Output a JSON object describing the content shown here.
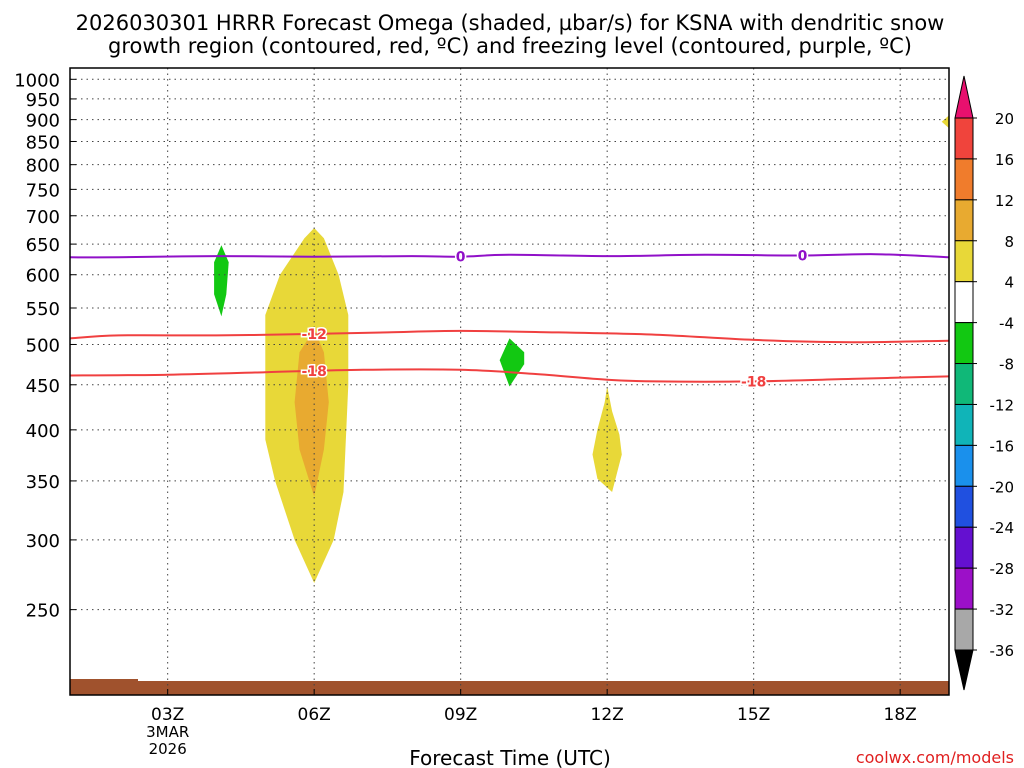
{
  "chart_data": {
    "type": "contour",
    "title_line1": "2026030301 HRRR Forecast Omega (shaded, µbar/s) for KSNA with dendritic snow",
    "title_line2": "growth region (contoured, red, ºC) and freezing level (contoured, purple, ºC)",
    "xlabel": "Forecast Time (UTC)",
    "credit": "coolwx.com/models",
    "x_range_hours": [
      1,
      19
    ],
    "y_range_hpa": [
      1030,
      200
    ],
    "y_scale": "log-pressure",
    "grid": "dotted",
    "x_ticks": [
      {
        "hour": 3,
        "label": "03Z",
        "sub1": "3MAR",
        "sub2": "2026"
      },
      {
        "hour": 6,
        "label": "06Z"
      },
      {
        "hour": 9,
        "label": "09Z"
      },
      {
        "hour": 12,
        "label": "12Z"
      },
      {
        "hour": 15,
        "label": "15Z"
      },
      {
        "hour": 18,
        "label": "18Z"
      }
    ],
    "y_ticks": [
      250,
      300,
      350,
      400,
      450,
      500,
      550,
      600,
      650,
      700,
      750,
      800,
      850,
      900,
      950,
      1000
    ],
    "colorbar": {
      "levels": [
        "20",
        "16",
        "12",
        "8",
        "4",
        "-4",
        "-8",
        "-12",
        "-16",
        "-20",
        "-24",
        "-28",
        "-32",
        "-36"
      ],
      "colors": [
        "#e8106e",
        "#f0443c",
        "#f07c2c",
        "#e8aa30",
        "#e8d838",
        "#ffffff",
        "#12c812",
        "#10b878",
        "#10b4b8",
        "#1a90ec",
        "#2050e0",
        "#6410d0",
        "#9c10c8",
        "#a8a8a8",
        "#000000"
      ]
    },
    "contours_celsius": {
      "minus18": {
        "label": "-18",
        "color": "#f04040",
        "points": [
          [
            1,
            461
          ],
          [
            3,
            462
          ],
          [
            5,
            465
          ],
          [
            7,
            468
          ],
          [
            9,
            468
          ],
          [
            10.5,
            463
          ],
          [
            12,
            456
          ],
          [
            13,
            454
          ],
          [
            15,
            454
          ],
          [
            17,
            457
          ],
          [
            19,
            460
          ]
        ]
      },
      "minus12": {
        "label": "-12",
        "color": "#f04040",
        "points": [
          [
            1,
            508
          ],
          [
            2,
            512
          ],
          [
            4,
            512
          ],
          [
            6,
            514
          ],
          [
            7.5,
            516
          ],
          [
            9,
            518
          ],
          [
            11,
            516
          ],
          [
            13,
            513
          ],
          [
            15,
            506
          ],
          [
            17,
            503
          ],
          [
            19,
            505
          ]
        ]
      },
      "zero": {
        "label": "0",
        "color": "#9010c8",
        "points": [
          [
            1,
            628
          ],
          [
            2,
            628
          ],
          [
            4,
            630
          ],
          [
            6,
            629
          ],
          [
            8,
            630
          ],
          [
            9,
            629
          ],
          [
            10,
            632
          ],
          [
            12,
            630
          ],
          [
            14,
            632
          ],
          [
            16,
            631
          ],
          [
            17.5,
            633
          ],
          [
            19,
            628
          ]
        ]
      }
    },
    "omega_regions": [
      {
        "value_band": "4 to 8",
        "color": "#e8d838",
        "points": [
          [
            6,
            268
          ],
          [
            5.6,
            300
          ],
          [
            5.2,
            350
          ],
          [
            5,
            390
          ],
          [
            5,
            450
          ],
          [
            5,
            540
          ],
          [
            5.3,
            600
          ],
          [
            5.8,
            660
          ],
          [
            6,
            678
          ],
          [
            6.2,
            660
          ],
          [
            6.5,
            600
          ],
          [
            6.7,
            540
          ],
          [
            6.7,
            450
          ],
          [
            6.6,
            340
          ],
          [
            6.4,
            300
          ]
        ]
      },
      {
        "value_band": "8 to 12",
        "color": "#e8aa30",
        "points": [
          [
            6,
            336
          ],
          [
            5.7,
            380
          ],
          [
            5.6,
            430
          ],
          [
            5.7,
            490
          ],
          [
            6,
            520
          ],
          [
            6.2,
            490
          ],
          [
            6.3,
            430
          ],
          [
            6.2,
            380
          ]
        ]
      },
      {
        "value_band": "4 to 8",
        "color": "#e8d838",
        "points": [
          [
            11.8,
            352
          ],
          [
            11.7,
            375
          ],
          [
            11.8,
            400
          ],
          [
            11.95,
            430
          ],
          [
            12,
            448
          ],
          [
            12.1,
            420
          ],
          [
            12.25,
            395
          ],
          [
            12.3,
            375
          ],
          [
            12.1,
            340
          ]
        ]
      },
      {
        "value_band": "-4 to -8",
        "color": "#12c812",
        "points": [
          [
            10,
            448
          ],
          [
            9.8,
            480
          ],
          [
            10,
            508
          ],
          [
            10.3,
            490
          ],
          [
            10.3,
            475
          ]
        ]
      },
      {
        "value_band": "-4 to -8",
        "color": "#12c812",
        "points": [
          [
            4.1,
            538
          ],
          [
            3.95,
            570
          ],
          [
            3.95,
            620
          ],
          [
            4.1,
            648
          ],
          [
            4.25,
            620
          ],
          [
            4.2,
            570
          ]
        ]
      },
      {
        "value_band": "4 to 8",
        "color": "#e8d838",
        "points": [
          [
            19,
            880
          ],
          [
            18.85,
            895
          ],
          [
            19,
            910
          ]
        ]
      }
    ]
  }
}
